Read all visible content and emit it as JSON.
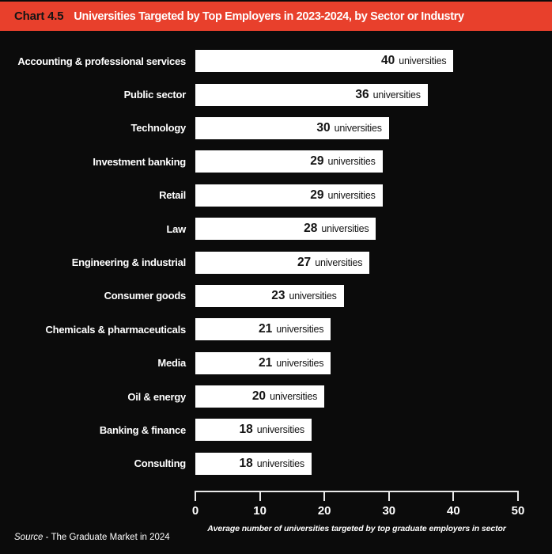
{
  "header": {
    "chart_number": "Chart 4.5",
    "title": "Universities Targeted by Top Employers in 2023-2024, by Sector or Industry",
    "background_color": "#e8402c"
  },
  "chart_data": {
    "type": "bar",
    "orientation": "horizontal",
    "title": "Universities Targeted by Top Employers in 2023-2024, by Sector or Industry",
    "categories": [
      "Accounting & professional services",
      "Public sector",
      "Technology",
      "Investment banking",
      "Retail",
      "Law",
      "Engineering & industrial",
      "Consumer goods",
      "Chemicals & pharmaceuticals",
      "Media",
      "Oil & energy",
      "Banking & finance",
      "Consulting"
    ],
    "values": [
      40,
      36,
      30,
      29,
      29,
      28,
      27,
      23,
      21,
      21,
      20,
      18,
      18
    ],
    "unit_label": "universities",
    "xlabel": "Average number of universities targeted by top graduate employers in sector",
    "ylabel": "",
    "xlim": [
      0,
      50
    ],
    "ticks": [
      0,
      10,
      20,
      30,
      40,
      50
    ],
    "grid": false,
    "legend": false,
    "bar_color": "#ffffff",
    "background_color": "#0b0b0b"
  },
  "footer": {
    "source_prefix": "Source",
    "source_text": "- The Graduate Market in 2024"
  }
}
